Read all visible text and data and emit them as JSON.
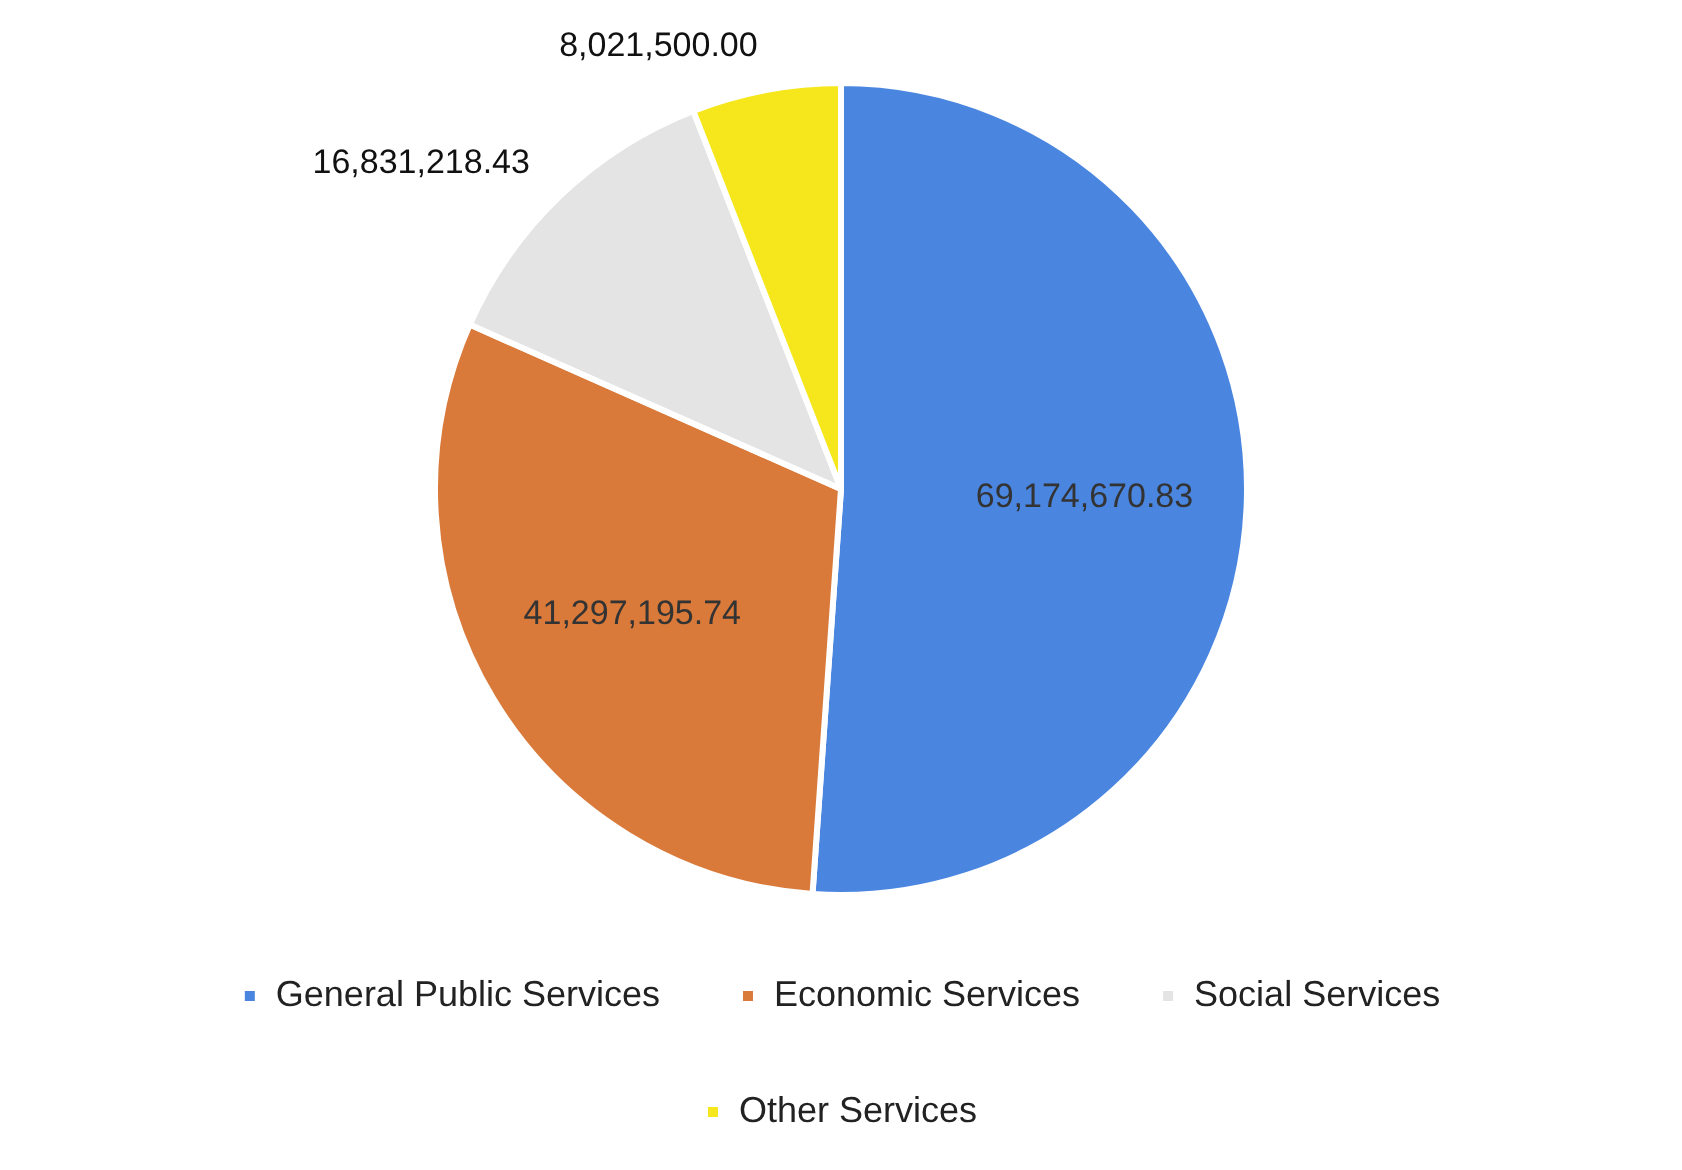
{
  "chart_data": {
    "type": "pie",
    "categories": [
      "General Public Services",
      "Economic Services",
      "Social Services",
      "Other Services"
    ],
    "values": [
      69174670.83,
      41297195.74,
      16831218.43,
      8021500.0
    ],
    "colors": [
      "#4a86e0",
      "#d97a3a",
      "#e4e4e4",
      "#f5e71c"
    ],
    "value_labels": [
      "69,174,670.83",
      "41,297,195.74",
      "16,831,218.43",
      "8,021,500.00"
    ],
    "legend": "bottom"
  }
}
